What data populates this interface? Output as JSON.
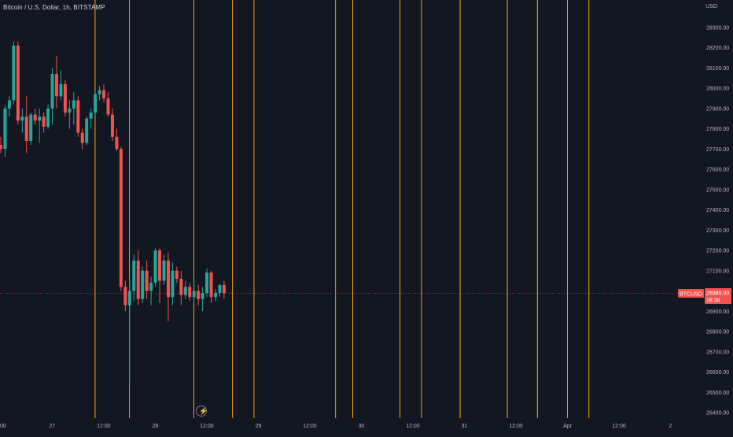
{
  "header": {
    "title": "Bitcoin / U.S. Dollar, 1h, BITSTAMP",
    "currency": "USD"
  },
  "price_tag": {
    "symbol": "BTCUSD",
    "price": "26989.00",
    "countdown": "28:38"
  },
  "icons": {
    "lightning": "lightning-icon"
  },
  "colors": {
    "background": "#131722",
    "up": "#26a69a",
    "down": "#ef5350",
    "vline": "#f7a21b",
    "price_line": "#ef5350",
    "axis_text": "#b2b5be"
  },
  "chart_data": {
    "type": "candlestick",
    "title": "Bitcoin / U.S. Dollar, 1h, BITSTAMP",
    "ylabel": "USD",
    "ylim": [
      26400,
      28400
    ],
    "y_ticks": [
      "28300.00",
      "28200.00",
      "28100.00",
      "28000.00",
      "27900.00",
      "27800.00",
      "27700.00",
      "27600.00",
      "27500.00",
      "27400.00",
      "27300.00",
      "27200.00",
      "27100.00",
      "27000.00",
      "26900.00",
      "26800.00",
      "26700.00",
      "26600.00",
      "26500.00",
      "26400.00"
    ],
    "x_ticks": [
      {
        "label": "00",
        "t": 0
      },
      {
        "label": "27",
        "t": 12
      },
      {
        "label": "12:00",
        "t": 24
      },
      {
        "label": "28",
        "t": 36
      },
      {
        "label": "12:00",
        "t": 48
      },
      {
        "label": "29",
        "t": 60
      },
      {
        "label": "12:00",
        "t": 72
      },
      {
        "label": "30",
        "t": 84
      },
      {
        "label": "12:00",
        "t": 96
      },
      {
        "label": "31",
        "t": 108
      },
      {
        "label": "12:00",
        "t": 120
      },
      {
        "label": "Apr",
        "t": 132
      },
      {
        "label": "12:00",
        "t": 144
      },
      {
        "label": "2",
        "t": 156
      }
    ],
    "current_price": 26989,
    "vertical_lines_t": [
      22,
      30,
      45,
      54,
      59,
      78,
      82,
      93,
      98,
      107,
      118,
      125,
      132,
      137
    ],
    "candles": [
      {
        "o": 27720,
        "h": 27760,
        "l": 27680,
        "c": 27700
      },
      {
        "o": 27700,
        "h": 27920,
        "l": 27660,
        "c": 27900
      },
      {
        "o": 27900,
        "h": 27960,
        "l": 27860,
        "c": 27940
      },
      {
        "o": 27940,
        "h": 28230,
        "l": 27920,
        "c": 28210
      },
      {
        "o": 28210,
        "h": 28230,
        "l": 27820,
        "c": 27840
      },
      {
        "o": 27840,
        "h": 27900,
        "l": 27780,
        "c": 27860
      },
      {
        "o": 27860,
        "h": 27960,
        "l": 27680,
        "c": 27740
      },
      {
        "o": 27740,
        "h": 27880,
        "l": 27720,
        "c": 27870
      },
      {
        "o": 27870,
        "h": 27900,
        "l": 27820,
        "c": 27840
      },
      {
        "o": 27840,
        "h": 27900,
        "l": 27730,
        "c": 27860
      },
      {
        "o": 27860,
        "h": 27880,
        "l": 27780,
        "c": 27810
      },
      {
        "o": 27810,
        "h": 27920,
        "l": 27800,
        "c": 27900
      },
      {
        "o": 27900,
        "h": 28100,
        "l": 27820,
        "c": 28070
      },
      {
        "o": 28070,
        "h": 28160,
        "l": 27900,
        "c": 27960
      },
      {
        "o": 27960,
        "h": 28090,
        "l": 27940,
        "c": 28020
      },
      {
        "o": 28020,
        "h": 28040,
        "l": 27860,
        "c": 27880
      },
      {
        "o": 27880,
        "h": 27940,
        "l": 27800,
        "c": 27900
      },
      {
        "o": 27900,
        "h": 27980,
        "l": 27820,
        "c": 27940
      },
      {
        "o": 27940,
        "h": 27960,
        "l": 27760,
        "c": 27780
      },
      {
        "o": 27780,
        "h": 27800,
        "l": 27700,
        "c": 27730
      },
      {
        "o": 27730,
        "h": 27860,
        "l": 27720,
        "c": 27850
      },
      {
        "o": 27850,
        "h": 27900,
        "l": 27800,
        "c": 27880
      },
      {
        "o": 27880,
        "h": 27990,
        "l": 27860,
        "c": 27970
      },
      {
        "o": 27970,
        "h": 28010,
        "l": 27940,
        "c": 27990
      },
      {
        "o": 27990,
        "h": 28020,
        "l": 27930,
        "c": 27950
      },
      {
        "o": 27950,
        "h": 27980,
        "l": 27860,
        "c": 27870
      },
      {
        "o": 27870,
        "h": 27900,
        "l": 27740,
        "c": 27760
      },
      {
        "o": 27760,
        "h": 27800,
        "l": 27690,
        "c": 27700
      },
      {
        "o": 27700,
        "h": 27710,
        "l": 27000,
        "c": 27020
      },
      {
        "o": 27020,
        "h": 27050,
        "l": 26900,
        "c": 26930
      },
      {
        "o": 26930,
        "h": 27060,
        "l": 26550,
        "c": 27000
      },
      {
        "o": 27000,
        "h": 27180,
        "l": 26950,
        "c": 27150
      },
      {
        "o": 27150,
        "h": 27200,
        "l": 26930,
        "c": 26960
      },
      {
        "o": 26960,
        "h": 27120,
        "l": 26940,
        "c": 27100
      },
      {
        "o": 27100,
        "h": 27150,
        "l": 26960,
        "c": 27000
      },
      {
        "o": 27000,
        "h": 27070,
        "l": 26930,
        "c": 27040
      },
      {
        "o": 27040,
        "h": 27210,
        "l": 27020,
        "c": 27200
      },
      {
        "o": 27200,
        "h": 27210,
        "l": 26940,
        "c": 27050
      },
      {
        "o": 27050,
        "h": 27180,
        "l": 27030,
        "c": 27150
      },
      {
        "o": 27150,
        "h": 27190,
        "l": 26850,
        "c": 26970
      },
      {
        "o": 26970,
        "h": 27140,
        "l": 26930,
        "c": 27100
      },
      {
        "o": 27100,
        "h": 27120,
        "l": 27040,
        "c": 27060
      },
      {
        "o": 27060,
        "h": 27100,
        "l": 26930,
        "c": 26980
      },
      {
        "o": 26980,
        "h": 27050,
        "l": 26960,
        "c": 27020
      },
      {
        "o": 27020,
        "h": 27040,
        "l": 26950,
        "c": 26970
      },
      {
        "o": 26970,
        "h": 27060,
        "l": 26940,
        "c": 27000
      },
      {
        "o": 27000,
        "h": 27030,
        "l": 26930,
        "c": 26960
      },
      {
        "o": 26960,
        "h": 27020,
        "l": 26900,
        "c": 26990
      },
      {
        "o": 26990,
        "h": 27110,
        "l": 26970,
        "c": 27090
      },
      {
        "o": 27090,
        "h": 27100,
        "l": 26940,
        "c": 26970
      },
      {
        "o": 26970,
        "h": 27010,
        "l": 26950,
        "c": 26990
      },
      {
        "o": 26990,
        "h": 27030,
        "l": 26970,
        "c": 27030
      },
      {
        "o": 27030,
        "h": 27050,
        "l": 26960,
        "c": 26989
      }
    ]
  }
}
